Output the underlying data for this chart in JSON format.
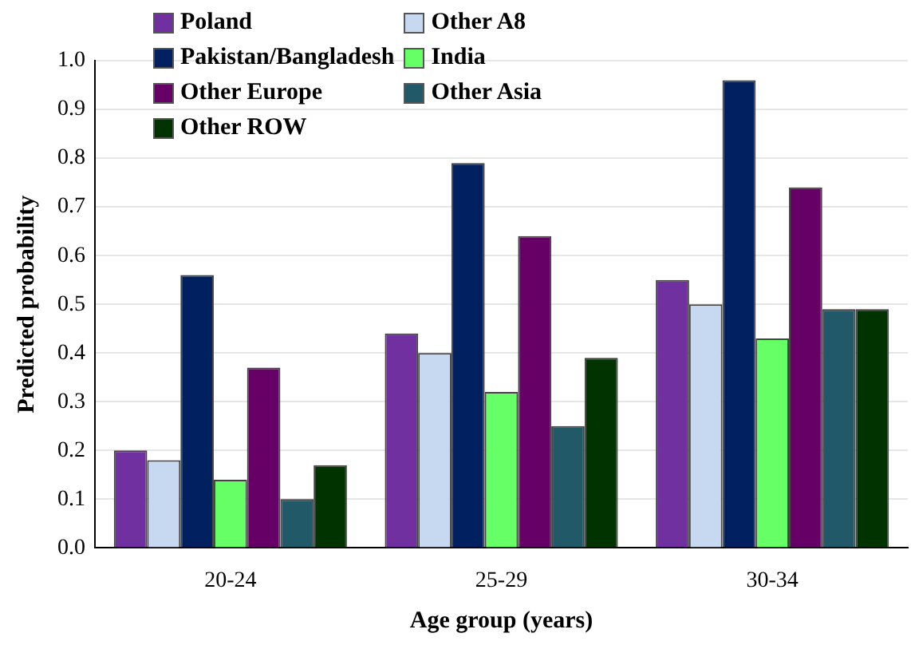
{
  "chart_data": {
    "type": "bar",
    "xlabel": "Age group (years)",
    "ylabel": "Predicted probability",
    "categories": [
      "20-24",
      "25-29",
      "30-34"
    ],
    "series": [
      {
        "name": "Poland",
        "color": "#7030a0",
        "values": [
          0.2,
          0.44,
          0.55
        ]
      },
      {
        "name": "Other A8",
        "color": "#c6d9f1",
        "values": [
          0.18,
          0.4,
          0.5
        ]
      },
      {
        "name": "Pakistan/Bangladesh",
        "color": "#002060",
        "values": [
          0.56,
          0.79,
          0.96
        ]
      },
      {
        "name": "India",
        "color": "#66ff66",
        "values": [
          0.14,
          0.32,
          0.43
        ]
      },
      {
        "name": "Other Europe",
        "color": "#660066",
        "values": [
          0.37,
          0.64,
          0.74
        ]
      },
      {
        "name": "Other Asia",
        "color": "#215968",
        "values": [
          0.1,
          0.25,
          0.49
        ]
      },
      {
        "name": "Other ROW",
        "color": "#003300",
        "values": [
          0.17,
          0.39,
          0.49
        ]
      }
    ],
    "ylim": [
      0,
      1
    ],
    "yticks": [
      {
        "value": 0,
        "label": "0.0"
      },
      {
        "value": 0.1,
        "label": "0.1"
      },
      {
        "value": 0.2,
        "label": "0.2"
      },
      {
        "value": 0.3,
        "label": "0.3"
      },
      {
        "value": 0.4,
        "label": "0.4"
      },
      {
        "value": 0.5,
        "label": "0.5"
      },
      {
        "value": 0.6,
        "label": "0.6"
      },
      {
        "value": 0.7,
        "label": "0.7"
      },
      {
        "value": 0.8,
        "label": "0.8"
      },
      {
        "value": 0.9,
        "label": "0.9"
      },
      {
        "value": 1,
        "label": "1.0"
      }
    ],
    "grid": "y",
    "legend": "top left"
  }
}
